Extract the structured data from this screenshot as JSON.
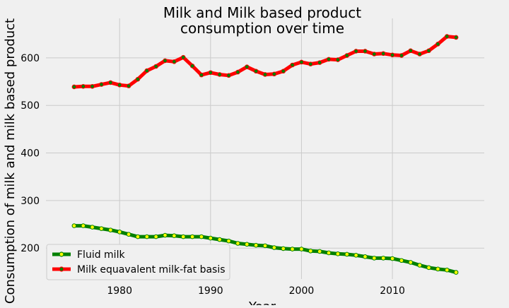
{
  "chart_data": {
    "type": "line",
    "title": "Milk and Milk based product\nconsumption over time",
    "xlabel": "Year",
    "ylabel": "Consumption of milk and milk based product",
    "xlim": [
      1971.9,
      2020.1
    ],
    "ylim": [
      135,
      683
    ],
    "xticks": [
      1980,
      1990,
      2000,
      2010
    ],
    "yticks": [
      200,
      300,
      400,
      500,
      600
    ],
    "grid": true,
    "legend_position": "lower-left",
    "x": [
      1975,
      1976,
      1977,
      1978,
      1979,
      1980,
      1981,
      1982,
      1983,
      1984,
      1985,
      1986,
      1987,
      1988,
      1989,
      1990,
      1991,
      1992,
      1993,
      1994,
      1995,
      1996,
      1997,
      1998,
      1999,
      2000,
      2001,
      2002,
      2003,
      2004,
      2005,
      2006,
      2007,
      2008,
      2009,
      2010,
      2011,
      2012,
      2013,
      2014,
      2015,
      2016,
      2017
    ],
    "series": [
      {
        "name": "Fluid milk",
        "color": "#008000",
        "marker_color": "#ffff00",
        "values": [
          247,
          247,
          244,
          241,
          238,
          234,
          229,
          224,
          224,
          224,
          227,
          226,
          224,
          224,
          224,
          221,
          218,
          215,
          210,
          208,
          206,
          205,
          201,
          199,
          198,
          198,
          194,
          193,
          190,
          188,
          187,
          185,
          182,
          179,
          179,
          178,
          174,
          170,
          164,
          159,
          156,
          154,
          149
        ]
      },
      {
        "name": "Milk equavalent milk-fat basis",
        "color": "#ff0000",
        "marker_color": "#008000",
        "values": [
          539,
          540,
          540,
          544,
          548,
          543,
          541,
          555,
          573,
          582,
          594,
          592,
          601,
          583,
          564,
          569,
          565,
          563,
          570,
          581,
          572,
          565,
          566,
          572,
          585,
          591,
          587,
          590,
          597,
          596,
          605,
          614,
          614,
          608,
          609,
          606,
          605,
          615,
          608,
          615,
          629,
          645,
          643
        ]
      }
    ]
  }
}
